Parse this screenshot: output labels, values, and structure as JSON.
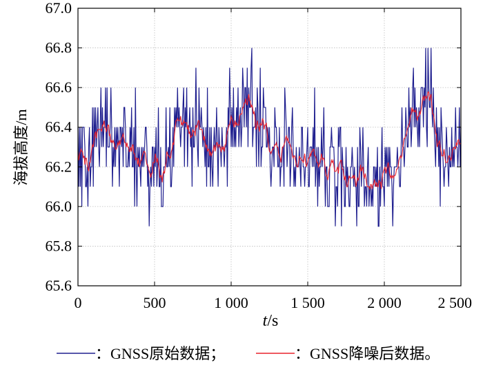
{
  "chart_data": {
    "type": "line",
    "ylabel": "海拔高度/m",
    "xlabel_italic": "t",
    "xlabel_rest": "/s",
    "xlim": [
      0,
      2500
    ],
    "ylim": [
      65.6,
      67.0
    ],
    "x_ticks": [
      0,
      500,
      1000,
      1500,
      2000,
      2500
    ],
    "x_tick_labels": [
      "0",
      "500",
      "1 000",
      "1 500",
      "2 000",
      "2 500"
    ],
    "y_ticks": [
      65.6,
      65.8,
      66.0,
      66.2,
      66.4,
      66.6,
      66.8,
      67.0
    ],
    "y_tick_labels": [
      "65.6",
      "65.8",
      "66.0",
      "66.2",
      "66.4",
      "66.6",
      "66.8",
      "67.0"
    ],
    "grid": true,
    "legend_position": "bottom",
    "series": [
      {
        "name": "GNSS原始数据",
        "legend_label": "：GNSS原始数据；",
        "color": "#1f1f8f",
        "resolution": 0.1,
        "x_step": 5,
        "trend": [
          [
            0,
            66.3
          ],
          [
            50,
            66.2
          ],
          [
            100,
            66.3
          ],
          [
            200,
            66.4
          ],
          [
            300,
            66.35
          ],
          [
            400,
            66.25
          ],
          [
            500,
            66.2
          ],
          [
            600,
            66.25
          ],
          [
            700,
            66.45
          ],
          [
            800,
            66.35
          ],
          [
            900,
            66.3
          ],
          [
            1000,
            66.35
          ],
          [
            1100,
            66.45
          ],
          [
            1200,
            66.5
          ],
          [
            1300,
            66.3
          ],
          [
            1400,
            66.25
          ],
          [
            1500,
            66.25
          ],
          [
            1600,
            66.25
          ],
          [
            1700,
            66.2
          ],
          [
            1800,
            66.12
          ],
          [
            1900,
            66.15
          ],
          [
            2000,
            66.15
          ],
          [
            2100,
            66.3
          ],
          [
            2200,
            66.45
          ],
          [
            2280,
            66.55
          ],
          [
            2350,
            66.35
          ],
          [
            2420,
            66.35
          ],
          [
            2500,
            66.3
          ]
        ]
      },
      {
        "name": "GNSS降噪后数据",
        "legend_label": "：GNSS降噪后数据。",
        "color": "#e8202a",
        "x_step": 5
      }
    ]
  }
}
